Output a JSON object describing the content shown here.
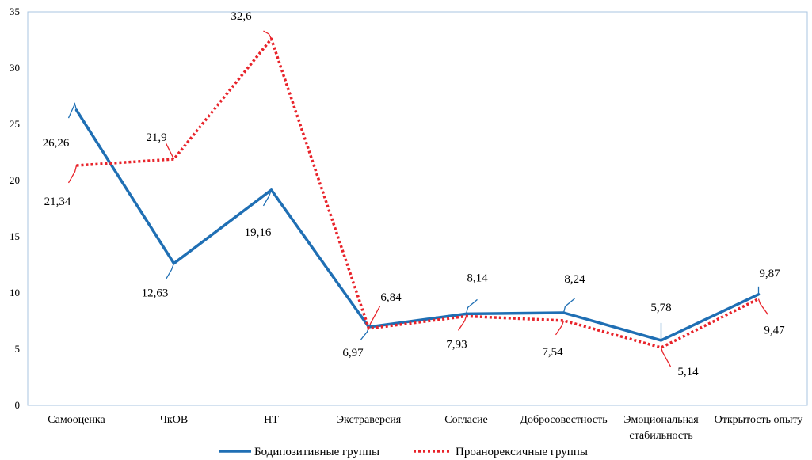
{
  "chart_data": {
    "type": "line",
    "categories": [
      [
        "Самооценка"
      ],
      [
        "ЧкОВ"
      ],
      [
        "НТ"
      ],
      [
        "Экстраверсия"
      ],
      [
        "Согласие"
      ],
      [
        "Добросовестность"
      ],
      [
        "Эмоциональная",
        "стабильность"
      ],
      [
        "Открытость опыту"
      ]
    ],
    "ylim": [
      0,
      35
    ],
    "yticks": [
      "0",
      "5",
      "10",
      "15",
      "20",
      "25",
      "30",
      "35"
    ],
    "grid": false,
    "legend_position": "bottom",
    "series": [
      {
        "name": "Бодипозитивные группы",
        "color": "#1f6fb4",
        "style": "solid",
        "values": [
          26.26,
          12.63,
          19.16,
          6.97,
          8.14,
          8.24,
          5.78,
          9.87
        ],
        "labels": [
          "26,26",
          "12,63",
          "19,16",
          "6,97",
          "8,14",
          "8,24",
          "5,78",
          "9,87"
        ]
      },
      {
        "name": "Проанорексичные группы",
        "color": "#e8232a",
        "style": "dotted",
        "values": [
          21.34,
          21.9,
          32.6,
          6.84,
          7.93,
          7.54,
          5.14,
          9.47
        ],
        "labels": [
          "21,34",
          "21,9",
          "32,6",
          "6,84",
          "7,93",
          "7,54",
          "5,14",
          "9,47"
        ]
      }
    ]
  }
}
